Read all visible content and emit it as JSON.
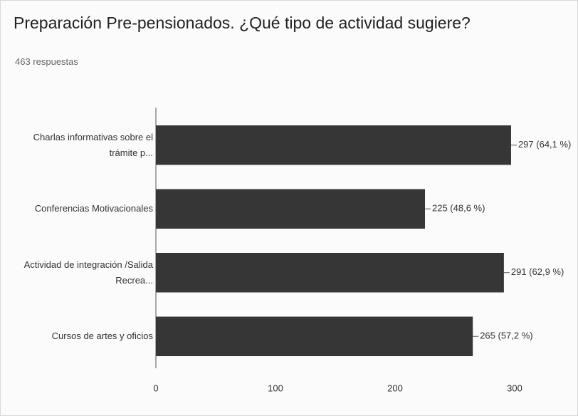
{
  "chart_data": {
    "type": "hbar",
    "title": "Preparación Pre-pensionados. ¿Qué tipo de actividad sugiere?",
    "subtitle": "463 respuestas",
    "categories": [
      "Charlas informativas sobre el trámite p...",
      "Conferencias Motivacionales",
      "Actividad de integración /Salida Recrea...",
      "Cursos de artes y oficios"
    ],
    "values": [
      297,
      225,
      291,
      265
    ],
    "value_labels": [
      "297 (64,1 %)",
      "225 (48,6 %)",
      "291 (62,9 %)",
      "265 (57,2 %)"
    ],
    "color": "#363636",
    "xlim": [
      0,
      300
    ],
    "xticks": [
      0,
      100,
      200,
      300
    ],
    "grid": false
  }
}
